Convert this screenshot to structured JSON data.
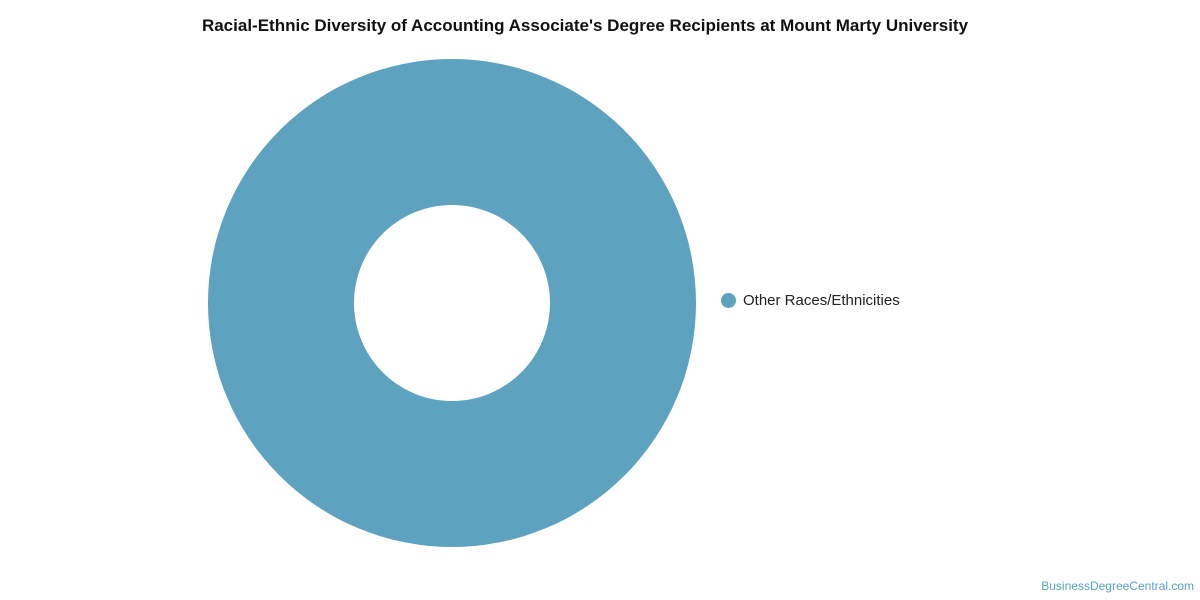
{
  "watermark": "BusinessDegreeCentral.com",
  "colors": {
    "slice": "#5da2bf",
    "background": "#ffffff",
    "title": "#111111",
    "legend_text": "#222222",
    "watermark": "#5aa1c2"
  },
  "chart_data": {
    "type": "pie",
    "variant": "donut",
    "title": "Racial-Ethnic Diversity of Accounting Associate's Degree Recipients at Mount Marty University",
    "legend_position": "right",
    "slices": [
      {
        "label": "Other Races/Ethnicities",
        "value": 100,
        "color": "#5da2bf"
      }
    ]
  }
}
